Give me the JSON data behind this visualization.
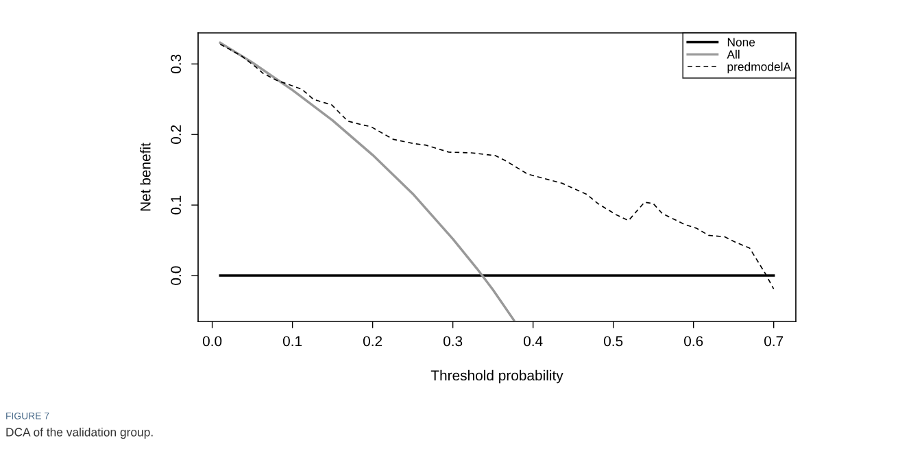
{
  "chart_data": {
    "type": "line",
    "xlabel": "Threshold probability",
    "ylabel": "Net benefit",
    "annotations": [
      "FIGURE 7",
      "DCA of the validation group."
    ],
    "xlim": [
      -0.0176,
      0.7276
    ],
    "ylim": [
      -0.065,
      0.344
    ],
    "xticks": [
      {
        "value": 0,
        "label": "0.0"
      },
      {
        "value": 0.1,
        "label": "0.1"
      },
      {
        "value": 0.2,
        "label": "0.2"
      },
      {
        "value": 0.3,
        "label": "0.3"
      },
      {
        "value": 0.4,
        "label": "0.4"
      },
      {
        "value": 0.5,
        "label": "0.5"
      },
      {
        "value": 0.6,
        "label": "0.6"
      },
      {
        "value": 0.7,
        "label": "0.7"
      }
    ],
    "yticks": [
      {
        "value": 0,
        "label": "0.0"
      },
      {
        "value": 0.1,
        "label": "0.1"
      },
      {
        "value": 0.2,
        "label": "0.2"
      },
      {
        "value": 0.3,
        "label": "0.3"
      }
    ],
    "grid": false,
    "legend": "top right",
    "marker": "none",
    "series": [
      {
        "name": "None",
        "color": "#000000",
        "line_style": "solid",
        "x": [
          0.01,
          0.7
        ],
        "values": [
          0,
          0
        ]
      },
      {
        "name": "All",
        "color": "#999999",
        "line_style": "solid",
        "x": [
          0.01,
          0.05,
          0.1,
          0.15,
          0.2,
          0.25,
          0.3,
          0.33,
          0.35,
          0.376
        ],
        "values": [
          0.33,
          0.302,
          0.263,
          0.22,
          0.171,
          0.116,
          0.052,
          0.01,
          -0.02,
          -0.063
        ]
      },
      {
        "name": "predmodelA",
        "color": "#000000",
        "line_style": "dashed",
        "x": [
          0.01,
          0.026,
          0.037,
          0.055,
          0.063,
          0.08,
          0.1,
          0.112,
          0.126,
          0.14,
          0.149,
          0.169,
          0.186,
          0.198,
          0.226,
          0.252,
          0.266,
          0.295,
          0.323,
          0.353,
          0.367,
          0.393,
          0.419,
          0.436,
          0.467,
          0.481,
          0.504,
          0.519,
          0.539,
          0.55,
          0.561,
          0.59,
          0.604,
          0.619,
          0.639,
          0.653,
          0.67,
          0.69,
          0.7
        ],
        "values": [
          0.328,
          0.318,
          0.311,
          0.295,
          0.287,
          0.277,
          0.269,
          0.264,
          0.25,
          0.245,
          0.242,
          0.219,
          0.214,
          0.211,
          0.193,
          0.187,
          0.185,
          0.175,
          0.174,
          0.17,
          0.162,
          0.144,
          0.136,
          0.131,
          0.115,
          0.102,
          0.086,
          0.078,
          0.104,
          0.102,
          0.088,
          0.072,
          0.067,
          0.057,
          0.055,
          0.047,
          0.039,
          0.002,
          -0.019
        ]
      }
    ]
  }
}
